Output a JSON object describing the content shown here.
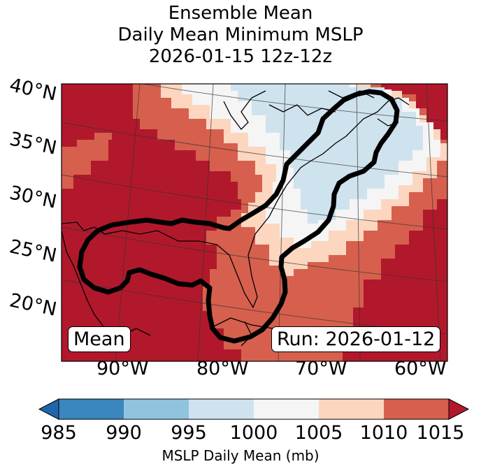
{
  "title": {
    "line1": "Ensemble Mean",
    "line2": "Daily Mean Minimum MSLP",
    "line3": "2026-01-15 12z-12z"
  },
  "map": {
    "lat_labels": [
      "40°N",
      "35°N",
      "30°N",
      "25°N",
      "20°N"
    ],
    "lon_labels": [
      "90°W",
      "80°W",
      "70°W",
      "60°W"
    ],
    "mean_label": "Mean",
    "run_label": "Run: 2026-01-12"
  },
  "colorbar": {
    "label": "MSLP Daily Mean (mb)",
    "ticks": [
      "985",
      "990",
      "995",
      "1000",
      "1005",
      "1010",
      "1015"
    ],
    "colors": [
      "#3a86be",
      "#8fc3de",
      "#cfe3ef",
      "#f5f5f5",
      "#fdd6c0",
      "#d6604d",
      "#b2182b"
    ],
    "extend_low_color": "#2166ac",
    "extend_high_color": "#b2182b"
  }
}
